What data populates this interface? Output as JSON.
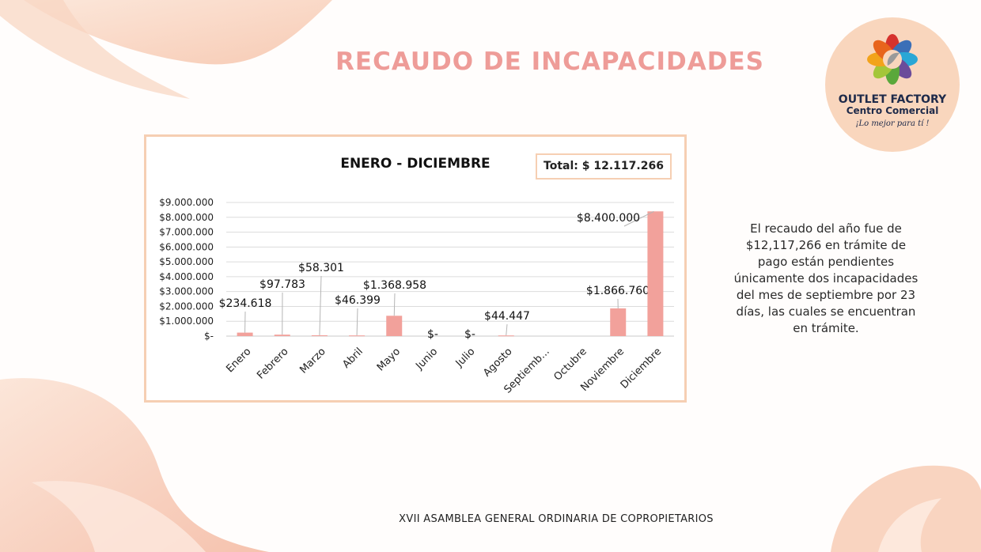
{
  "slide": {
    "title": "RECAUDO DE INCAPACIDADES",
    "footer": "XVII ASAMBLEA GENERAL ORDINARIA DE COPROPIETARIOS",
    "note": "El recaudo del año fue de $12,117,266 en trámite de pago están pendientes únicamente dos incapacidades del mes de septiembre por 23 días, las cuales se encuentran en trámite."
  },
  "logo": {
    "name": "OUTLET FACTORY",
    "subtitle": "Centro Comercial",
    "tagline": "¡Lo mejor para tí !",
    "icon": "flower-logo-icon"
  },
  "total": {
    "label": "Total:",
    "value": "$ 12.117.266"
  },
  "colors": {
    "accent": "#ee9c98",
    "bar": "#f2a19b",
    "frame": "#f6cfb3",
    "decor": "#f9cdb3"
  },
  "chart_data": {
    "type": "bar",
    "title": "ENERO - DICIEMBRE",
    "categories": [
      "Enero",
      "Febrero",
      "Marzo",
      "Abril",
      "Mayo",
      "Junio",
      "Julio",
      "Agosto",
      "Septiemb...",
      "Octubre",
      "Noviembre",
      "Diciembre"
    ],
    "values": [
      234618,
      97783,
      58301,
      46399,
      1368958,
      0,
      0,
      44447,
      0,
      0,
      1866760,
      8400000
    ],
    "data_labels": [
      "$234.618",
      "$97.783",
      "$58.301",
      "$46.399",
      "$1.368.958",
      "$-",
      "$-",
      "$44.447",
      "",
      "",
      "$1.866.760",
      "$8.400.000"
    ],
    "y_ticks": [
      "$-",
      "$1.000.000",
      "$2.000.000",
      "$3.000.000",
      "$4.000.000",
      "$5.000.000",
      "$6.000.000",
      "$7.000.000",
      "$8.000.000",
      "$9.000.000"
    ],
    "ylim": [
      0,
      9000000
    ],
    "grid": true,
    "legend": false
  }
}
